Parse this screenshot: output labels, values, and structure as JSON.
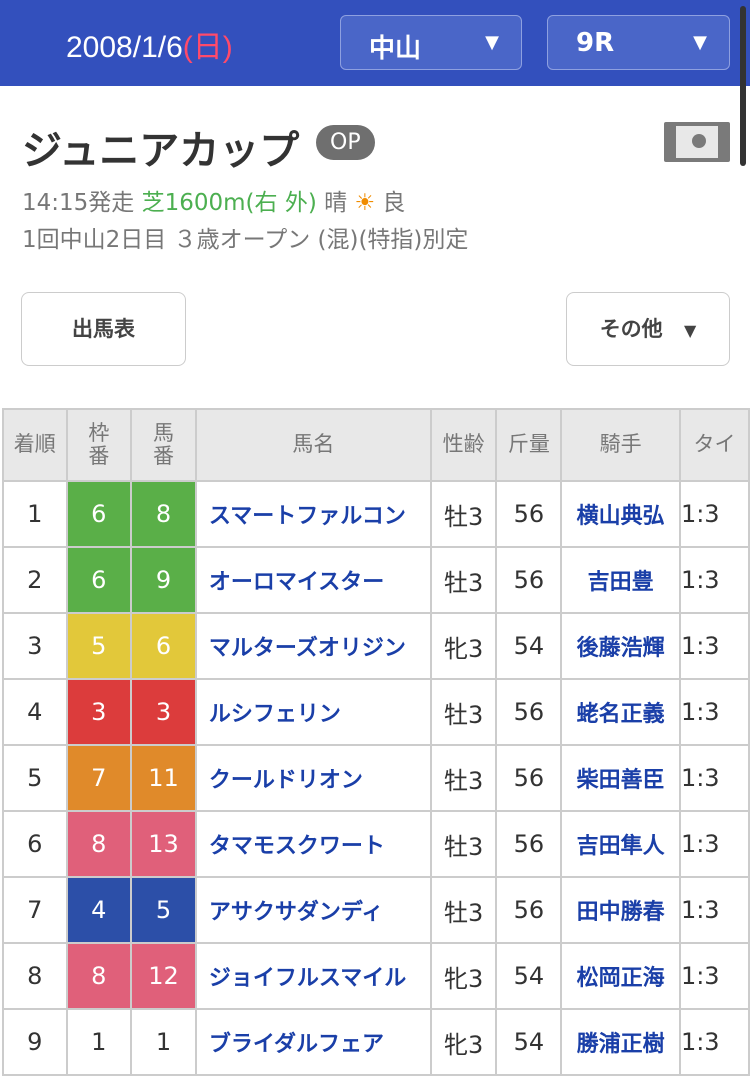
{
  "header": {
    "date": "2008/1/6",
    "weekday": "(日)",
    "venue": "中山",
    "race": "9R"
  },
  "race": {
    "title": "ジュニアカップ",
    "grade": "OP",
    "start": "14:15発走",
    "course": "芝1600m(右 外)",
    "weather": "晴",
    "weather_icon": "sun-icon",
    "going": "良",
    "info": "1回中山2日目 ３歳オープン (混)(特指)別定"
  },
  "buttons": {
    "entries": "出馬表",
    "other": "その他"
  },
  "table": {
    "headers": [
      "着順",
      "枠\n番",
      "馬\n番",
      "馬名",
      "性齢",
      "斤量",
      "騎手",
      "タイ"
    ],
    "frame_colors": {
      "1": "#ffffff",
      "3": "#dc3c3c",
      "4": "#2c4fa8",
      "5": "#e2c83a",
      "6": "#5aaf48",
      "7": "#e08a2a",
      "8": "#e0607a"
    },
    "rows": [
      {
        "pos": "1",
        "frame": "6",
        "num": "8",
        "name": "スマートファルコン",
        "sex": "牡3",
        "wt": "56",
        "jockey": "横山典弘",
        "time": "1:3"
      },
      {
        "pos": "2",
        "frame": "6",
        "num": "9",
        "name": "オーロマイスター",
        "sex": "牡3",
        "wt": "56",
        "jockey": "吉田豊",
        "time": "1:3"
      },
      {
        "pos": "3",
        "frame": "5",
        "num": "6",
        "name": "マルターズオリジン",
        "sex": "牝3",
        "wt": "54",
        "jockey": "後藤浩輝",
        "time": "1:3"
      },
      {
        "pos": "4",
        "frame": "3",
        "num": "3",
        "name": "ルシフェリン",
        "sex": "牡3",
        "wt": "56",
        "jockey": "蛯名正義",
        "time": "1:3"
      },
      {
        "pos": "5",
        "frame": "7",
        "num": "11",
        "name": "クールドリオン",
        "sex": "牡3",
        "wt": "56",
        "jockey": "柴田善臣",
        "time": "1:3"
      },
      {
        "pos": "6",
        "frame": "8",
        "num": "13",
        "name": "タマモスクワート",
        "sex": "牡3",
        "wt": "56",
        "jockey": "吉田隼人",
        "time": "1:3"
      },
      {
        "pos": "7",
        "frame": "4",
        "num": "5",
        "name": "アサクサダンディ",
        "sex": "牡3",
        "wt": "56",
        "jockey": "田中勝春",
        "time": "1:3"
      },
      {
        "pos": "8",
        "frame": "8",
        "num": "12",
        "name": "ジョイフルスマイル",
        "sex": "牝3",
        "wt": "54",
        "jockey": "松岡正海",
        "time": "1:3"
      },
      {
        "pos": "9",
        "frame": "1",
        "num": "1",
        "name": "ブライダルフェア",
        "sex": "牝3",
        "wt": "54",
        "jockey": "勝浦正樹",
        "time": "1:3"
      }
    ]
  }
}
